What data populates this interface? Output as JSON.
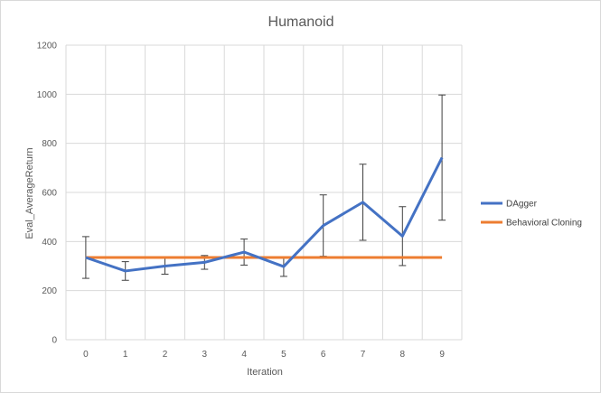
{
  "chart_data": {
    "type": "line",
    "title": "Humanoid",
    "xlabel": "Iteration",
    "ylabel": "Eval_AverageReturn",
    "x": [
      0,
      1,
      2,
      3,
      4,
      5,
      6,
      7,
      8,
      9
    ],
    "x_tick_labels": [
      "0",
      "1",
      "2",
      "3",
      "4",
      "5",
      "6",
      "7",
      "8",
      "9"
    ],
    "ylim": [
      0,
      1200
    ],
    "y_ticks": [
      0,
      200,
      400,
      600,
      800,
      1000,
      1200
    ],
    "y_tick_labels": [
      "0",
      "200",
      "400",
      "600",
      "800",
      "1000",
      "1200"
    ],
    "grid": true,
    "legend_position": "right",
    "series": [
      {
        "name": "DAgger",
        "color": "#4472C4",
        "values": [
          335,
          280,
          300,
          315,
          357,
          298,
          465,
          560,
          422,
          742
        ],
        "error": [
          85,
          38,
          33,
          28,
          53,
          40,
          125,
          155,
          120,
          255
        ]
      },
      {
        "name": "Behavioral Cloning",
        "color": "#ED7D31",
        "values": [
          335,
          335,
          335,
          335,
          335,
          335,
          335,
          335,
          335,
          335
        ]
      }
    ]
  }
}
